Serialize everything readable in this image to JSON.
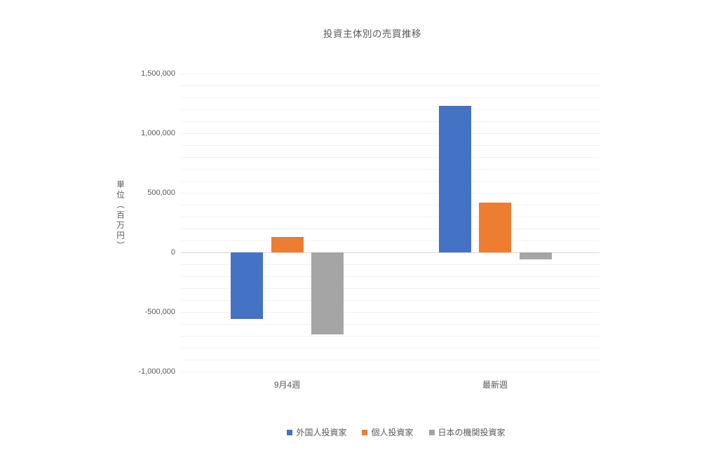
{
  "chart_title": "投資主体別の売買推移",
  "y_axis_title": "単位（百万円）",
  "colors": {
    "text": "#595959",
    "gridline_minor": "#f2f2f2",
    "zero_axis_line": "#d9d9d9",
    "series_blue": "#4472c4",
    "series_orange": "#ed7d31",
    "series_gray": "#a5a5a5",
    "background": "#ffffff"
  },
  "chart_data": {
    "type": "bar",
    "title": "投資主体別の売買推移",
    "categories": [
      "9月4週",
      "最新週"
    ],
    "series": [
      {
        "name": "外国人投資家",
        "color": "#4472c4",
        "values": [
          -560000,
          1230000
        ]
      },
      {
        "name": "個人投資家",
        "color": "#ed7d31",
        "values": [
          130000,
          420000
        ]
      },
      {
        "name": "日本の機関投資家",
        "color": "#a5a5a5",
        "values": [
          -690000,
          -60000
        ]
      }
    ],
    "xlabel": "",
    "ylabel": "単位（百万円）",
    "ylim": [
      -1000000,
      1500000
    ],
    "major_unit": 500000,
    "minor_unit": 100000,
    "y_tick_labels": [
      "1,500,000",
      "1,000,000",
      "500,000",
      "0",
      "-500,000",
      "-1,000,000"
    ],
    "grid": true,
    "legend_position": "bottom"
  }
}
